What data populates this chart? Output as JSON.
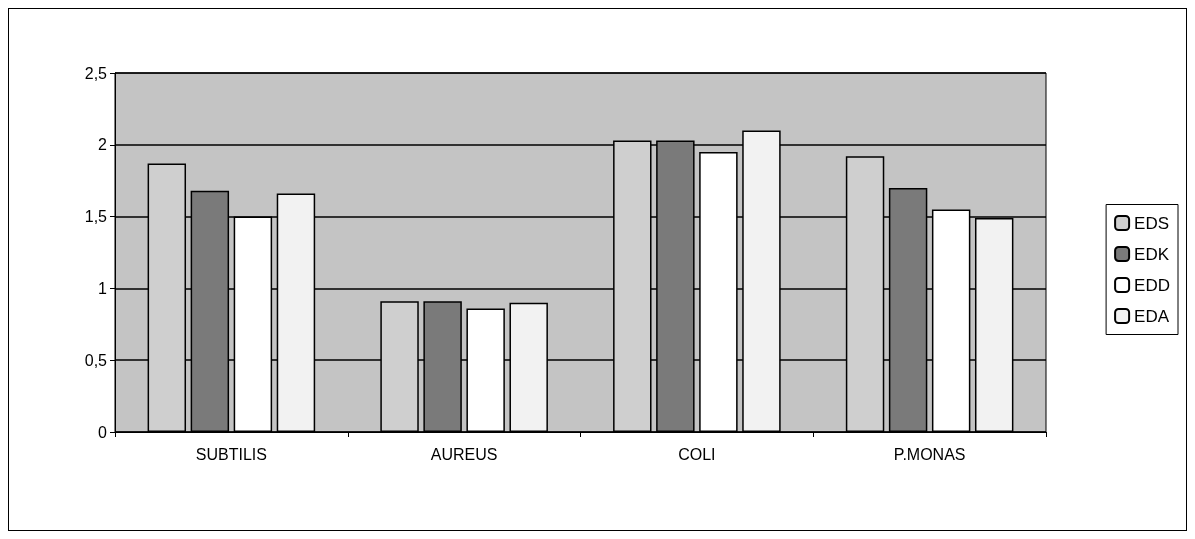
{
  "chart_data": {
    "type": "bar",
    "categories": [
      "SUBTILIS",
      "AUREUS",
      "COLI",
      "P.MONAS"
    ],
    "series": [
      {
        "name": "EDS",
        "color": "#cfcfcf",
        "values": [
          1.87,
          0.91,
          2.03,
          1.92
        ]
      },
      {
        "name": "EDK",
        "color": "#7a7a7a",
        "values": [
          1.68,
          0.91,
          2.03,
          1.7
        ]
      },
      {
        "name": "EDD",
        "color": "#ffffff",
        "values": [
          1.5,
          0.86,
          1.95,
          1.55
        ]
      },
      {
        "name": "EDA",
        "color": "#f2f2f2",
        "values": [
          1.66,
          0.9,
          2.1,
          1.49
        ]
      }
    ],
    "ylim": [
      0,
      2.5
    ],
    "yticks": [
      0,
      {
        "value": 0.5,
        "label": "0,5"
      },
      1,
      {
        "value": 1.5,
        "label": "1,5"
      },
      2,
      {
        "value": 2.5,
        "label": "2,5"
      }
    ],
    "grid": "y",
    "legend": "right"
  }
}
